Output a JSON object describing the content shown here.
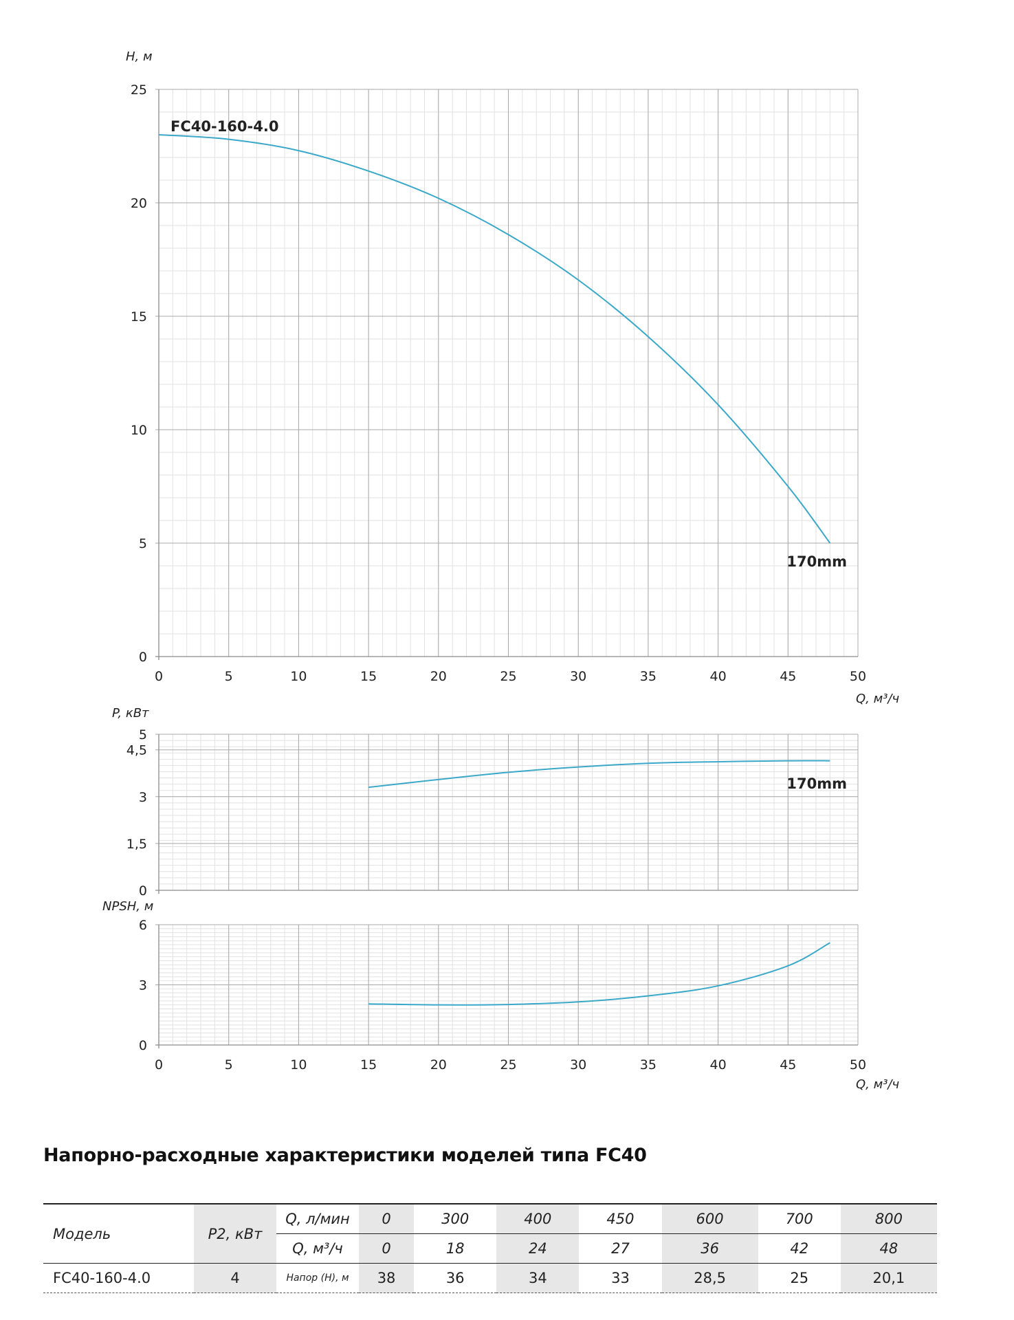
{
  "chart_data": [
    {
      "type": "line",
      "title": "",
      "xlabel": "Q, м³/ч",
      "ylabel": "H, м",
      "xlim": [
        0,
        50
      ],
      "ylim": [
        0,
        25
      ],
      "x_ticks": [
        "0",
        "5",
        "10",
        "15",
        "20",
        "25",
        "30",
        "35",
        "40",
        "45",
        "50"
      ],
      "y_ticks": [
        "0",
        "5",
        "10",
        "15",
        "20",
        "25"
      ],
      "grid": true,
      "series": [
        {
          "name": "FC40-160-4.0",
          "end_label": "170mm",
          "color": "#3aa8c8",
          "x": [
            0,
            5,
            10,
            15,
            20,
            25,
            30,
            35,
            40,
            45,
            48
          ],
          "y": [
            23.0,
            22.8,
            22.3,
            21.4,
            20.2,
            18.6,
            16.6,
            14.1,
            11.1,
            7.5,
            5.0
          ]
        }
      ]
    },
    {
      "type": "line",
      "title": "",
      "xlabel": "",
      "ylabel": "P, кВт",
      "xlim": [
        0,
        50
      ],
      "ylim": [
        0,
        5
      ],
      "x_ticks": [],
      "y_ticks": [
        "0",
        "1,5",
        "3",
        "4,5",
        "5"
      ],
      "y_tick_values": [
        0,
        1.5,
        3,
        4.5,
        5
      ],
      "grid": true,
      "series": [
        {
          "name": "170mm",
          "color": "#3aa8c8",
          "x": [
            15,
            20,
            25,
            30,
            35,
            40,
            45,
            48
          ],
          "y": [
            3.3,
            3.55,
            3.78,
            3.95,
            4.07,
            4.12,
            4.15,
            4.15
          ]
        }
      ]
    },
    {
      "type": "line",
      "title": "",
      "xlabel": "Q, м³/ч",
      "ylabel": "NPSH, м",
      "xlim": [
        0,
        50
      ],
      "ylim": [
        0,
        6
      ],
      "x_ticks": [
        "0",
        "5",
        "10",
        "15",
        "20",
        "25",
        "30",
        "35",
        "40",
        "45",
        "50"
      ],
      "y_ticks": [
        "0",
        "3",
        "6"
      ],
      "grid": true,
      "series": [
        {
          "name": "",
          "color": "#3aa8c8",
          "x": [
            15,
            20,
            25,
            30,
            35,
            40,
            45,
            48
          ],
          "y": [
            2.05,
            2.0,
            2.02,
            2.15,
            2.45,
            2.95,
            3.95,
            5.1
          ]
        }
      ]
    }
  ],
  "table": {
    "title": "Напорно-расходные характеристики моделей типа FC40",
    "model_header": "Модель",
    "power_header": "P2, кВт",
    "q_lmin_label": "Q, л/мин",
    "q_m3h_label": "Q, м³/ч",
    "head_label": "Напор (H), м",
    "q_lmin": [
      "0",
      "300",
      "400",
      "450",
      "600",
      "700",
      "800"
    ],
    "q_m3h": [
      "0",
      "18",
      "24",
      "27",
      "36",
      "42",
      "48"
    ],
    "rows": [
      {
        "model": "FC40-160-4.0",
        "power": "4",
        "head": [
          "38",
          "36",
          "34",
          "33",
          "28,5",
          "25",
          "20,1"
        ]
      }
    ]
  }
}
